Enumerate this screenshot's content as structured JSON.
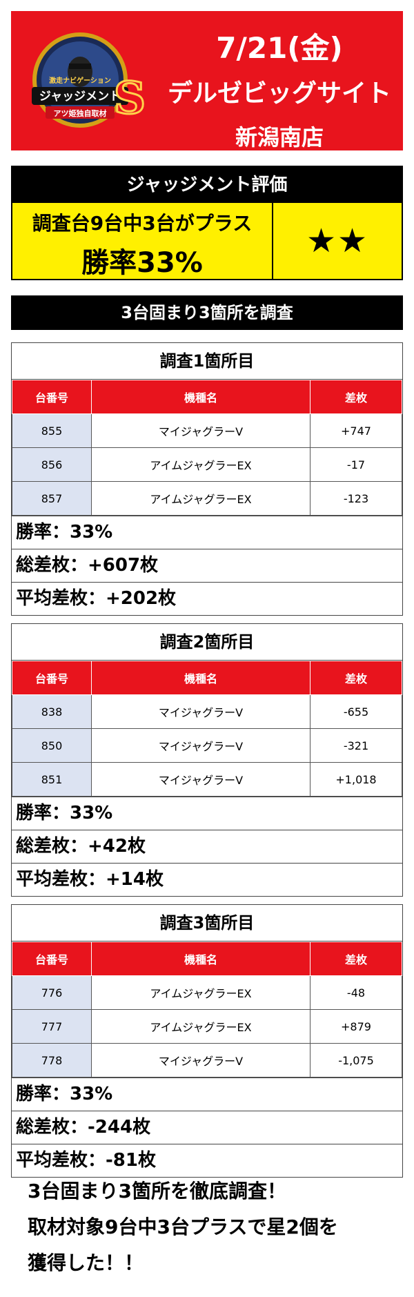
{
  "header": {
    "date": "7/21(金)",
    "store": "デルゼビッグサイト",
    "branch": "新潟南店",
    "logo_text_top": "激走ナビゲーション",
    "logo_text_main": "ジャッジメント",
    "logo_text_sub": "アツ姫独自取材",
    "logo_letter": "S"
  },
  "evaluation": {
    "title": "ジャッジメント評価",
    "line1": "調査台9台中3台がプラス",
    "line2": "勝率33%",
    "stars": "★★"
  },
  "section_title": "3台固まり3箇所を調査",
  "columns": {
    "number": "台番号",
    "model": "機種名",
    "diff": "差枚"
  },
  "surveys": [
    {
      "title": "調査1箇所目",
      "rows": [
        {
          "number": "855",
          "model": "マイジャグラーV",
          "diff": "+747"
        },
        {
          "number": "856",
          "model": "アイムジャグラーEX",
          "diff": "-17"
        },
        {
          "number": "857",
          "model": "アイムジャグラーEX",
          "diff": "-123"
        }
      ],
      "win_rate": "勝率：33%",
      "total": "総差枚：+607枚",
      "average": "平均差枚：+202枚"
    },
    {
      "title": "調査2箇所目",
      "rows": [
        {
          "number": "838",
          "model": "マイジャグラーV",
          "diff": "-655"
        },
        {
          "number": "850",
          "model": "マイジャグラーV",
          "diff": "-321"
        },
        {
          "number": "851",
          "model": "マイジャグラーV",
          "diff": "+1,018"
        }
      ],
      "win_rate": "勝率：33%",
      "total": "総差枚：+42枚",
      "average": "平均差枚：+14枚"
    },
    {
      "title": "調査3箇所目",
      "rows": [
        {
          "number": "776",
          "model": "アイムジャグラーEX",
          "diff": "-48"
        },
        {
          "number": "777",
          "model": "アイムジャグラーEX",
          "diff": "+879"
        },
        {
          "number": "778",
          "model": "マイジャグラーV",
          "diff": "-1,075"
        }
      ],
      "win_rate": "勝率：33%",
      "total": "総差枚：-244枚",
      "average": "平均差枚：-81枚"
    }
  ],
  "footer": {
    "line1": "3台固まり3箇所を徹底調査！",
    "line2": "取材対象9台中3台プラスで星2個を",
    "line3": "獲得した！！"
  },
  "colors": {
    "header_red": "#e8141d",
    "evaluation_yellow": "#fff000",
    "number_cell_blue": "#dce3f2"
  }
}
